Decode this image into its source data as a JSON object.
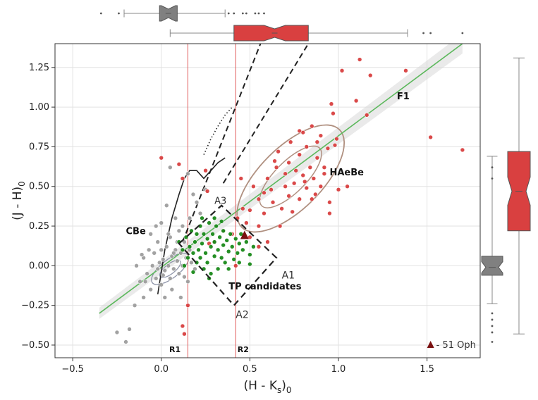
{
  "chart_data": {
    "type": "scatter",
    "title": "",
    "xlabel_main": "(H - K",
    "xlabel_sub1": "s",
    "xlabel_tail": ")",
    "xlabel_sub2": "0",
    "ylabel_main": "(J - H)",
    "ylabel_sub": "0",
    "xlim": [
      -0.6,
      1.8
    ],
    "ylim": [
      -0.58,
      1.4
    ],
    "xticks": [
      -0.5,
      0.0,
      0.5,
      1.0,
      1.5
    ],
    "xtick_labels": [
      "−0.5",
      "0.0",
      "0.5",
      "1.0",
      "1.5"
    ],
    "yticks": [
      -0.5,
      -0.25,
      0.0,
      0.25,
      0.5,
      0.75,
      1.0,
      1.25
    ],
    "ytick_labels": [
      "−0.50",
      "−0.25",
      "0.00",
      "0.25",
      "0.50",
      "0.75",
      "1.00",
      "1.25"
    ],
    "grid": true,
    "colors": {
      "cbe": "#9e9e9e",
      "haebe": "#d94040",
      "tp": "#1a8a1a",
      "fit": "#5cb85c",
      "ref_line": "#e05a5a",
      "contour": "#b09080",
      "box_gray": "#808080",
      "box_red": "#d94040",
      "oph": "#7a1010"
    },
    "labels": {
      "cbe": "CBe",
      "haebe": "HAeBe",
      "tp": "TP candidates",
      "f1": "F1",
      "a1": "A1",
      "a2": "A2",
      "a3": "A3",
      "r1": "R1",
      "r2": "R2",
      "oph": "- 51 Oph"
    },
    "vlines": [
      {
        "name": "R1",
        "x": 0.15
      },
      {
        "name": "R2",
        "x": 0.42
      }
    ],
    "fit_line": {
      "x": [
        -0.35,
        1.7
      ],
      "y": [
        -0.3,
        1.4
      ]
    },
    "star_51oph": {
      "x": 0.47,
      "y": 0.19
    },
    "haebe_points": [
      [
        0.0,
        0.68
      ],
      [
        0.1,
        0.64
      ],
      [
        0.12,
        0.55
      ],
      [
        0.25,
        0.6
      ],
      [
        0.26,
        0.47
      ],
      [
        0.27,
        0.14
      ],
      [
        0.3,
        0.15
      ],
      [
        0.35,
        0.22
      ],
      [
        0.4,
        0.2
      ],
      [
        0.43,
        0.3
      ],
      [
        0.45,
        0.55
      ],
      [
        0.46,
        0.36
      ],
      [
        0.48,
        0.27
      ],
      [
        0.5,
        0.35
      ],
      [
        0.5,
        0.18
      ],
      [
        0.52,
        0.5
      ],
      [
        0.55,
        0.12
      ],
      [
        0.55,
        0.42
      ],
      [
        0.58,
        0.33
      ],
      [
        0.6,
        0.15
      ],
      [
        0.6,
        0.55
      ],
      [
        0.62,
        0.48
      ],
      [
        0.63,
        0.4
      ],
      [
        0.65,
        0.62
      ],
      [
        0.66,
        0.72
      ],
      [
        0.67,
        0.25
      ],
      [
        0.7,
        0.5
      ],
      [
        0.7,
        0.58
      ],
      [
        0.72,
        0.44
      ],
      [
        0.72,
        0.65
      ],
      [
        0.73,
        0.78
      ],
      [
        0.75,
        0.52
      ],
      [
        0.76,
        0.6
      ],
      [
        0.78,
        0.42
      ],
      [
        0.78,
        0.7
      ],
      [
        0.8,
        0.57
      ],
      [
        0.8,
        0.84
      ],
      [
        0.82,
        0.49
      ],
      [
        0.82,
        0.75
      ],
      [
        0.84,
        0.62
      ],
      [
        0.85,
        0.42
      ],
      [
        0.85,
        0.88
      ],
      [
        0.86,
        0.55
      ],
      [
        0.88,
        0.68
      ],
      [
        0.88,
        0.78
      ],
      [
        0.9,
        0.5
      ],
      [
        0.9,
        0.82
      ],
      [
        0.92,
        0.62
      ],
      [
        0.92,
        0.58
      ],
      [
        0.94,
        0.74
      ],
      [
        0.95,
        0.33
      ],
      [
        0.95,
        0.4
      ],
      [
        0.96,
        1.02
      ],
      [
        0.97,
        0.96
      ],
      [
        0.98,
        0.76
      ],
      [
        0.99,
        0.8
      ],
      [
        1.0,
        0.48
      ],
      [
        1.02,
        1.23
      ],
      [
        1.05,
        0.5
      ],
      [
        1.1,
        1.04
      ],
      [
        1.12,
        1.3
      ],
      [
        1.16,
        0.95
      ],
      [
        1.18,
        1.2
      ],
      [
        1.38,
        1.23
      ],
      [
        1.52,
        0.81
      ],
      [
        1.7,
        0.73
      ],
      [
        0.12,
        -0.38
      ],
      [
        0.13,
        -0.43
      ],
      [
        0.15,
        -0.25
      ],
      [
        0.42,
        0.0
      ],
      [
        0.55,
        0.25
      ],
      [
        0.68,
        0.36
      ],
      [
        0.74,
        0.34
      ],
      [
        0.81,
        0.53
      ],
      [
        0.87,
        0.45
      ],
      [
        0.78,
        0.85
      ],
      [
        0.64,
        0.66
      ],
      [
        0.58,
        0.46
      ]
    ],
    "tp_points": [
      [
        0.1,
        0.15
      ],
      [
        0.12,
        0.1
      ],
      [
        0.14,
        0.18
      ],
      [
        0.15,
        0.05
      ],
      [
        0.16,
        0.12
      ],
      [
        0.17,
        0.22
      ],
      [
        0.18,
        0.08
      ],
      [
        0.19,
        0.15
      ],
      [
        0.2,
        0.02
      ],
      [
        0.2,
        0.2
      ],
      [
        0.21,
        0.1
      ],
      [
        0.22,
        0.25
      ],
      [
        0.22,
        0.05
      ],
      [
        0.23,
        0.14
      ],
      [
        0.24,
        -0.02
      ],
      [
        0.24,
        0.2
      ],
      [
        0.25,
        0.08
      ],
      [
        0.26,
        0.17
      ],
      [
        0.26,
        0.02
      ],
      [
        0.27,
        0.27
      ],
      [
        0.28,
        0.12
      ],
      [
        0.28,
        -0.05
      ],
      [
        0.29,
        0.2
      ],
      [
        0.3,
        0.06
      ],
      [
        0.3,
        0.15
      ],
      [
        0.31,
        0.25
      ],
      [
        0.32,
        0.1
      ],
      [
        0.32,
        -0.02
      ],
      [
        0.33,
        0.18
      ],
      [
        0.34,
        0.05
      ],
      [
        0.35,
        0.13
      ],
      [
        0.35,
        0.22
      ],
      [
        0.36,
        0.02
      ],
      [
        0.37,
        0.16
      ],
      [
        0.38,
        0.09
      ],
      [
        0.39,
        0.2
      ],
      [
        0.4,
        0.12
      ],
      [
        0.41,
        0.04
      ],
      [
        0.42,
        0.17
      ],
      [
        0.43,
        0.08
      ],
      [
        0.44,
        0.14
      ],
      [
        0.45,
        0.2
      ],
      [
        0.46,
        0.1
      ],
      [
        0.48,
        0.15
      ],
      [
        0.5,
        0.07
      ],
      [
        0.52,
        0.12
      ],
      [
        0.13,
        0.0
      ],
      [
        0.18,
        -0.04
      ],
      [
        0.23,
        0.3
      ],
      [
        0.27,
        -0.08
      ],
      [
        0.34,
        0.28
      ],
      [
        0.38,
        -0.02
      ],
      [
        0.3,
        0.3
      ],
      [
        0.44,
        0.02
      ],
      [
        0.5,
        0.01
      ]
    ],
    "cbe_points": [
      [
        -0.25,
        -0.42
      ],
      [
        -0.2,
        -0.48
      ],
      [
        -0.18,
        -0.4
      ],
      [
        -0.15,
        -0.25
      ],
      [
        -0.12,
        -0.1
      ],
      [
        -0.1,
        0.05
      ],
      [
        -0.08,
        -0.05
      ],
      [
        -0.07,
        0.1
      ],
      [
        -0.06,
        -0.15
      ],
      [
        -0.05,
        0.0
      ],
      [
        -0.04,
        0.08
      ],
      [
        -0.03,
        -0.08
      ],
      [
        -0.02,
        0.15
      ],
      [
        -0.01,
        0.02
      ],
      [
        0.0,
        -0.12
      ],
      [
        0.0,
        0.1
      ],
      [
        0.01,
        0.04
      ],
      [
        0.02,
        -0.03
      ],
      [
        0.03,
        0.12
      ],
      [
        0.04,
        0.0
      ],
      [
        0.05,
        -0.08
      ],
      [
        0.05,
        0.18
      ],
      [
        0.06,
        0.06
      ],
      [
        0.07,
        -0.02
      ],
      [
        0.08,
        0.1
      ],
      [
        0.09,
        0.03
      ],
      [
        0.1,
        -0.05
      ],
      [
        0.1,
        0.22
      ],
      [
        0.11,
        0.08
      ],
      [
        0.12,
        0.0
      ],
      [
        0.13,
        0.15
      ],
      [
        0.14,
        0.05
      ],
      [
        0.15,
        -0.1
      ],
      [
        0.16,
        0.3
      ],
      [
        0.17,
        0.02
      ],
      [
        0.18,
        0.45
      ],
      [
        0.2,
        0.4
      ],
      [
        0.22,
        0.33
      ],
      [
        0.15,
        0.58
      ],
      [
        0.25,
        0.48
      ],
      [
        0.05,
        0.62
      ],
      [
        0.03,
        0.38
      ],
      [
        -0.03,
        0.25
      ],
      [
        0.08,
        0.3
      ],
      [
        -0.1,
        -0.2
      ],
      [
        -0.14,
        0.0
      ],
      [
        0.02,
        -0.2
      ],
      [
        0.06,
        -0.15
      ],
      [
        0.11,
        -0.2
      ],
      [
        -0.06,
        0.2
      ],
      [
        0.0,
        0.27
      ],
      [
        -0.09,
        -0.1
      ],
      [
        0.04,
        0.2
      ],
      [
        0.09,
        0.15
      ],
      [
        -0.02,
        -0.02
      ],
      [
        0.07,
        0.08
      ],
      [
        0.13,
        -0.07
      ],
      [
        0.16,
        0.1
      ],
      [
        0.19,
        -0.02
      ],
      [
        -0.11,
        0.07
      ],
      [
        0.01,
        -0.06
      ],
      [
        0.12,
        0.25
      ]
    ],
    "tracks": {
      "dashed_1": {
        "x": [
          0.12,
          0.56
        ],
        "y": [
          0.15,
          1.4
        ]
      },
      "dashed_2": {
        "x": [
          0.35,
          0.83
        ],
        "y": [
          0.52,
          1.4
        ]
      },
      "solid_track": {
        "x": [
          -0.02,
          0.02,
          0.06,
          0.1,
          0.13,
          0.16,
          0.2,
          0.24,
          0.28,
          0.32,
          0.36
        ],
        "y": [
          -0.18,
          0.1,
          0.3,
          0.45,
          0.55,
          0.6,
          0.6,
          0.55,
          0.6,
          0.65,
          0.68
        ]
      },
      "dotted_track": {
        "x": [
          0.24,
          0.28,
          0.32,
          0.36,
          0.4
        ],
        "y": [
          0.7,
          0.8,
          0.88,
          0.95,
          1.0
        ]
      }
    },
    "boxes": {
      "a_region": {
        "corners": [
          [
            0.1,
            0.14
          ],
          [
            0.34,
            0.38
          ],
          [
            0.65,
            0.05
          ],
          [
            0.41,
            -0.25
          ]
        ]
      }
    },
    "marginal_x": {
      "cbe": {
        "q1": -0.01,
        "median": 0.04,
        "q3": 0.09,
        "wmin": -0.21,
        "wmax": 0.36,
        "fliers": [
          -0.34,
          -0.24,
          0.38,
          0.41,
          0.46,
          0.48,
          0.53,
          0.55,
          0.58
        ]
      },
      "haebe": {
        "q1": 0.41,
        "median": 0.64,
        "q3": 0.83,
        "wmin": 0.05,
        "wmax": 1.39,
        "fliers": [
          1.48,
          1.52,
          1.7
        ]
      }
    },
    "marginal_y": {
      "cbe": {
        "q1": -0.06,
        "median": -0.01,
        "q3": 0.06,
        "wmin": -0.24,
        "wmax": 0.69,
        "fliers": [
          -0.3,
          -0.34,
          -0.38,
          -0.42,
          -0.48,
          0.62,
          0.55
        ]
      },
      "haebe": {
        "q1": 0.22,
        "median": 0.47,
        "q3": 0.72,
        "wmin": -0.43,
        "wmax": 1.31,
        "fliers": []
      }
    }
  }
}
